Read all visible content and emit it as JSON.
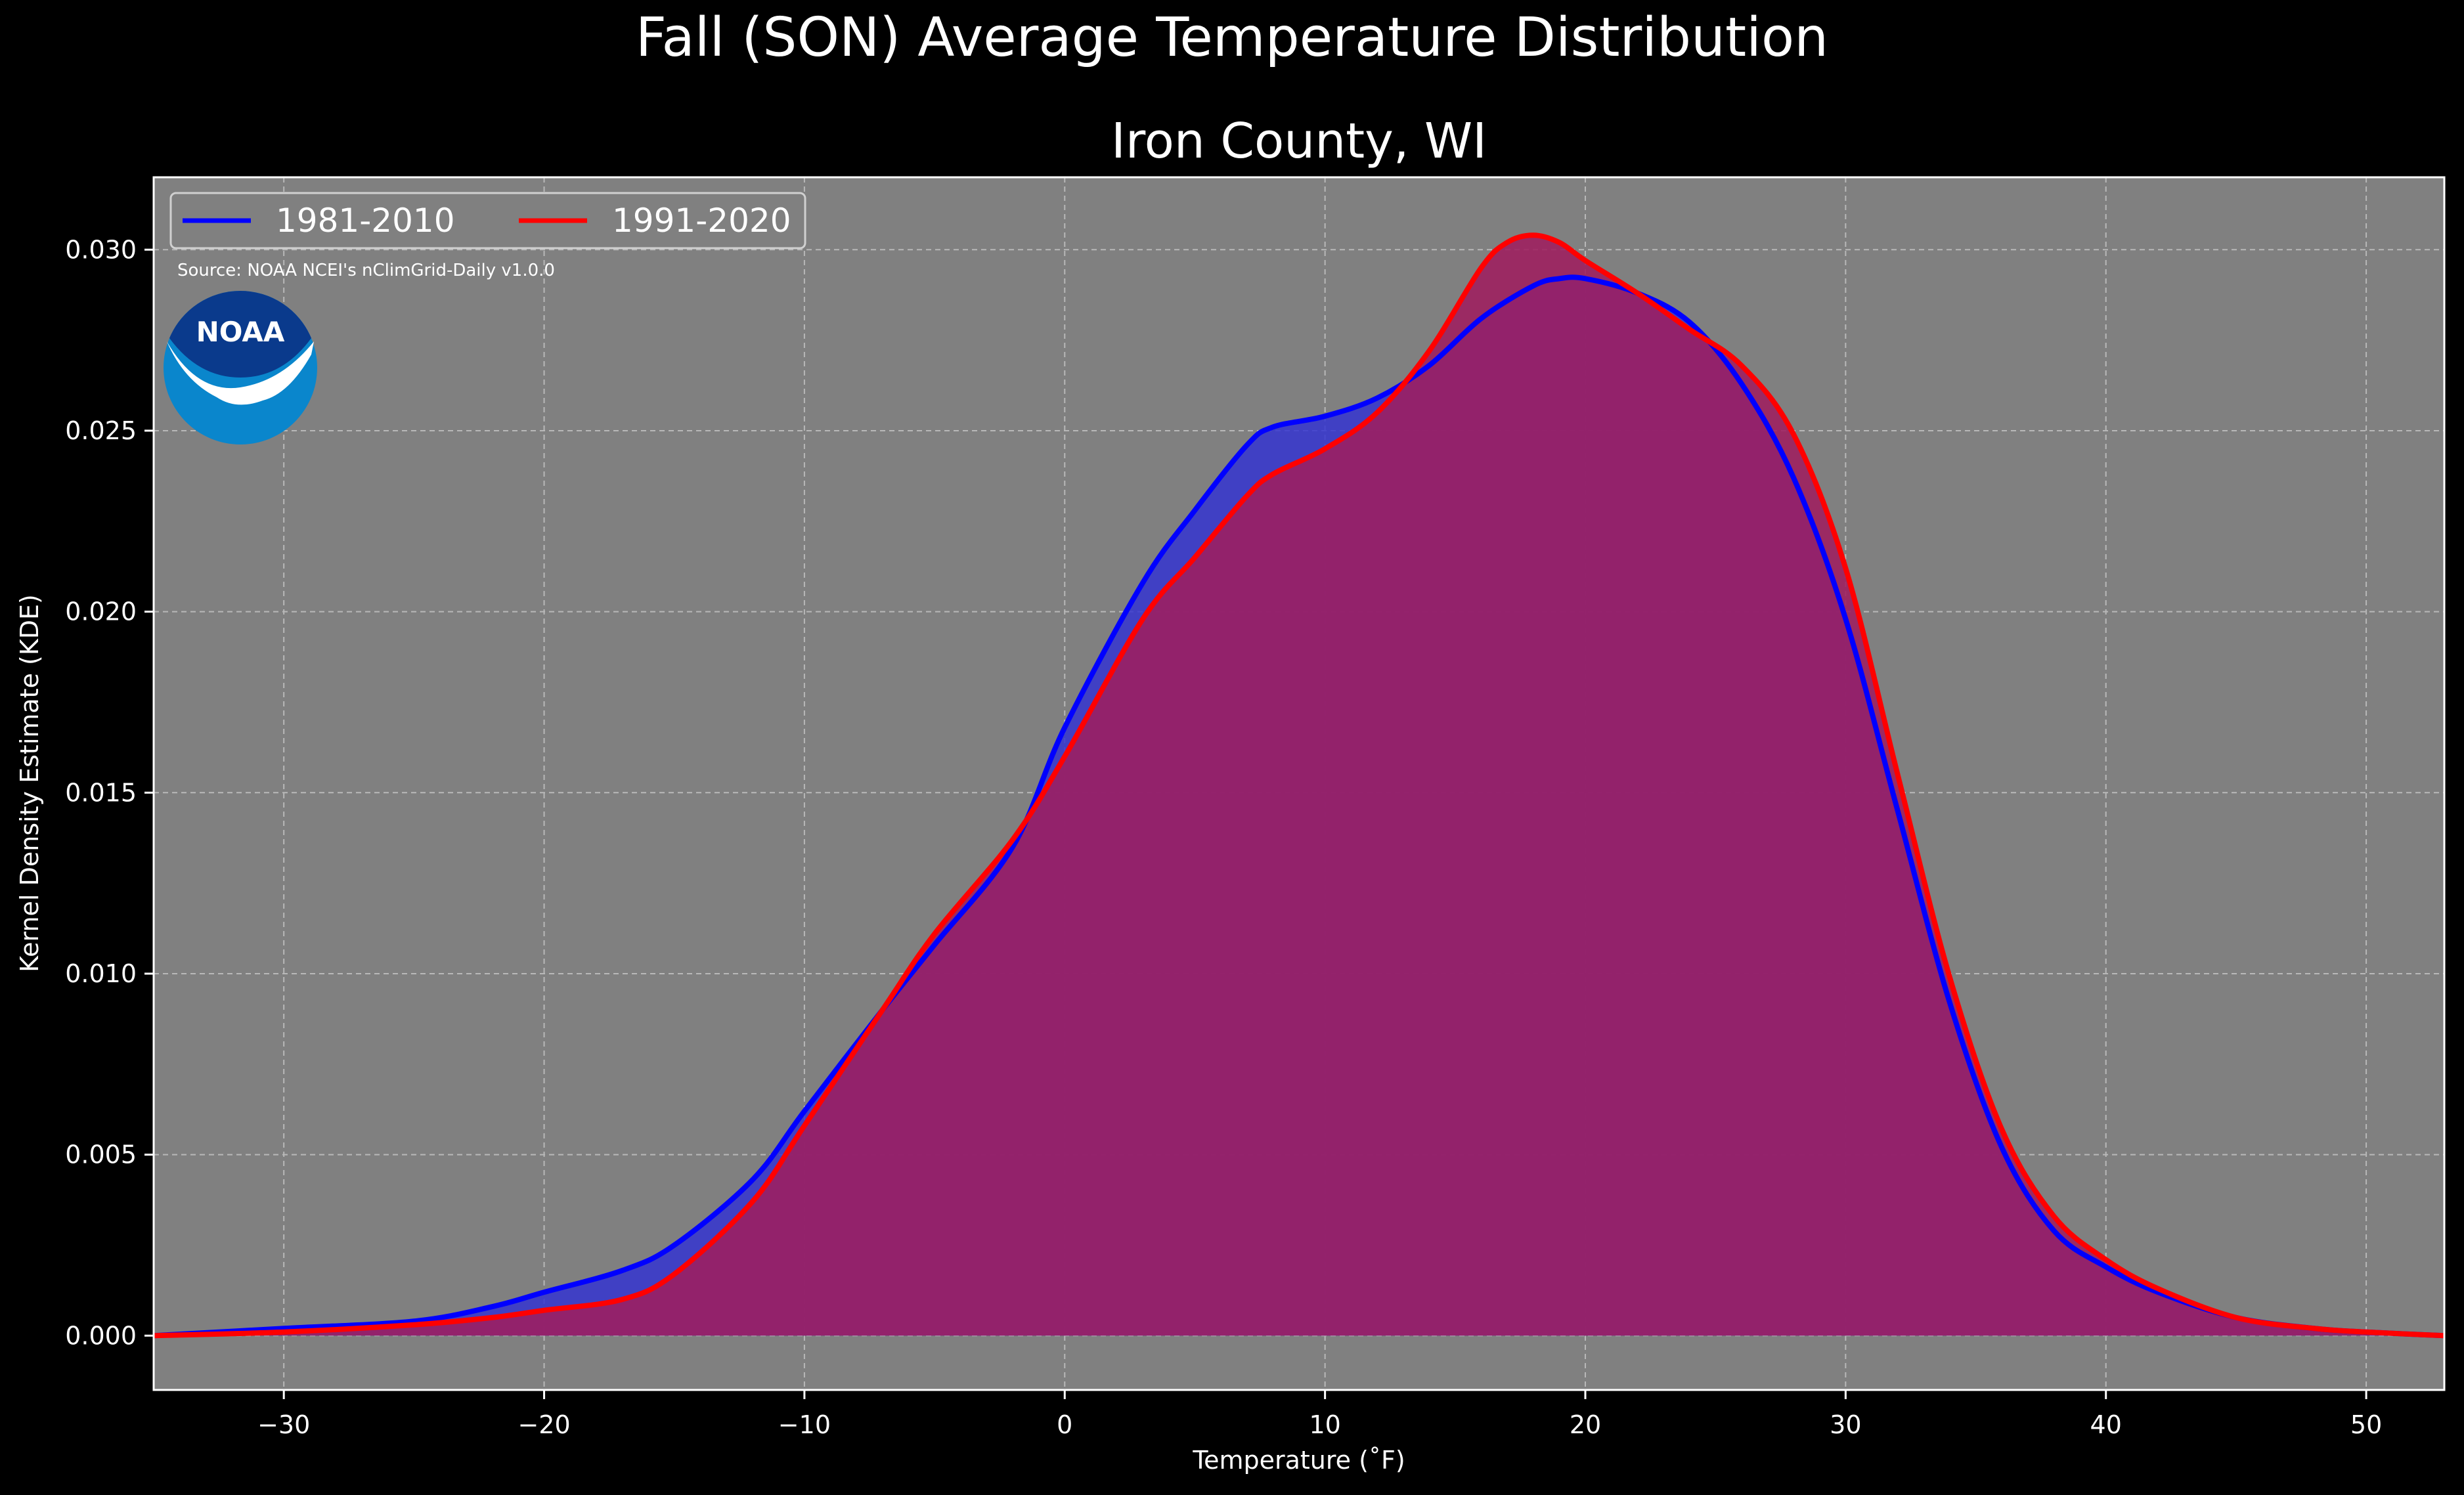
{
  "page": {
    "suptitle": "Fall (SON) Average Temperature Distribution",
    "source_note": "Source: NOAA NCEI's nClimGrid-Daily v1.0.0",
    "logo_text": "NOAA"
  },
  "colors": {
    "background": "#000000",
    "plot_background": "#808080",
    "series_1981_2010": "#0000ff",
    "series_1991_2020": "#ff0000",
    "fill_1981_2010": "#3535d0",
    "fill_1991_2020": "#9e1e5e",
    "logo_dark": "#0a3a8c",
    "logo_light": "#0a86cc"
  },
  "chart_data": {
    "type": "area",
    "title": "Iron County, WI",
    "xlabel": "Temperature (˚F)",
    "ylabel": "Kernel Density Estimate (KDE)",
    "xlim": [
      -35,
      53
    ],
    "ylim": [
      -0.0015,
      0.032
    ],
    "xticks": [
      -30,
      -20,
      -10,
      0,
      10,
      20,
      30,
      40,
      50
    ],
    "xtick_labels": [
      "−30",
      "−20",
      "−10",
      "0",
      "10",
      "20",
      "30",
      "40",
      "50"
    ],
    "yticks": [
      0.0,
      0.005,
      0.01,
      0.015,
      0.02,
      0.025,
      0.03
    ],
    "ytick_labels": [
      "0.000",
      "0.005",
      "0.010",
      "0.015",
      "0.020",
      "0.025",
      "0.030"
    ],
    "grid": true,
    "legend_position": "top-left",
    "series": [
      {
        "name": "1981-2010",
        "x": [
          -35,
          -30,
          -25,
          -22,
          -20,
          -17,
          -15,
          -12,
          -10,
          -7,
          -5,
          -2,
          0,
          3,
          5,
          7,
          8,
          10,
          12,
          14,
          16,
          18,
          19,
          20,
          22,
          24,
          26,
          28,
          30,
          32,
          34,
          36,
          38,
          40,
          42,
          45,
          48,
          50,
          53
        ],
        "y": [
          0.0,
          0.0002,
          0.0004,
          0.0008,
          0.0012,
          0.0018,
          0.0025,
          0.0043,
          0.0062,
          0.009,
          0.0108,
          0.0135,
          0.0168,
          0.0208,
          0.0228,
          0.0246,
          0.0251,
          0.0254,
          0.0259,
          0.0268,
          0.0281,
          0.029,
          0.0292,
          0.0292,
          0.0288,
          0.028,
          0.0263,
          0.0237,
          0.0198,
          0.0145,
          0.0092,
          0.0052,
          0.0029,
          0.0019,
          0.0012,
          0.0005,
          0.0002,
          0.0001,
          0.0
        ]
      },
      {
        "name": "1991-2020",
        "x": [
          -35,
          -30,
          -25,
          -22,
          -20,
          -17,
          -15,
          -12,
          -10,
          -7,
          -5,
          -2,
          0,
          3,
          5,
          7,
          8,
          10,
          12,
          14,
          16,
          17,
          18,
          19,
          20,
          22,
          24,
          26,
          28,
          30,
          32,
          34,
          36,
          38,
          40,
          42,
          45,
          48,
          50,
          53
        ],
        "y": [
          0.0,
          0.0001,
          0.0003,
          0.0005,
          0.0007,
          0.001,
          0.0017,
          0.0037,
          0.0058,
          0.009,
          0.0111,
          0.0137,
          0.016,
          0.0198,
          0.0215,
          0.0232,
          0.0238,
          0.0245,
          0.0255,
          0.0272,
          0.0295,
          0.0302,
          0.0304,
          0.0302,
          0.0297,
          0.0288,
          0.0278,
          0.0268,
          0.0249,
          0.0212,
          0.0155,
          0.0099,
          0.0057,
          0.0033,
          0.0021,
          0.0013,
          0.0005,
          0.0002,
          0.0001,
          0.0
        ]
      }
    ]
  }
}
